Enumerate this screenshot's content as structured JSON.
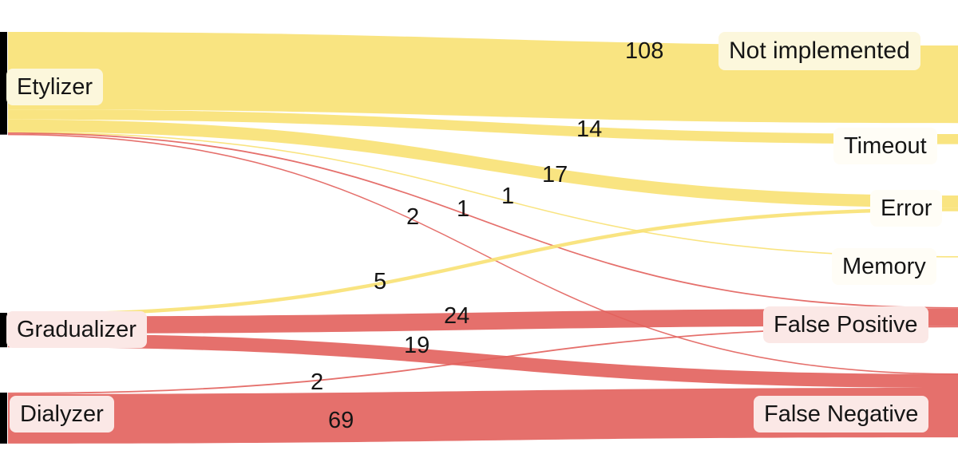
{
  "chart_data": {
    "type": "sankey",
    "title": "",
    "nodes": [
      {
        "label": "Etylizer",
        "side": "left",
        "palette": "yellow"
      },
      {
        "label": "Gradualizer",
        "side": "left",
        "palette": "pink"
      },
      {
        "label": "Dialyzer",
        "side": "left",
        "palette": "pink"
      },
      {
        "label": "Not implemented",
        "side": "right",
        "palette": "yellow"
      },
      {
        "label": "Timeout",
        "side": "right",
        "palette": "plain"
      },
      {
        "label": "Error",
        "side": "right",
        "palette": "plain"
      },
      {
        "label": "Memory",
        "side": "right",
        "palette": "plain"
      },
      {
        "label": "False Positive",
        "side": "right",
        "palette": "pink"
      },
      {
        "label": "False Negative",
        "side": "right",
        "palette": "pink"
      }
    ],
    "links": [
      {
        "source": "Etylizer",
        "target": "Not implemented",
        "value": 108
      },
      {
        "source": "Etylizer",
        "target": "Timeout",
        "value": 14
      },
      {
        "source": "Etylizer",
        "target": "Error",
        "value": 17
      },
      {
        "source": "Etylizer",
        "target": "Memory",
        "value": 1
      },
      {
        "source": "Etylizer",
        "target": "False Positive",
        "value": 2
      },
      {
        "source": "Etylizer",
        "target": "False Negative",
        "value": 1
      },
      {
        "source": "Gradualizer",
        "target": "Error",
        "value": 5
      },
      {
        "source": "Gradualizer",
        "target": "False Positive",
        "value": 24
      },
      {
        "source": "Gradualizer",
        "target": "False Negative",
        "value": 19
      },
      {
        "source": "Dialyzer",
        "target": "False Positive",
        "value": 2
      },
      {
        "source": "Dialyzer",
        "target": "False Negative",
        "value": 69
      }
    ],
    "colors": {
      "flow_yellow": "#f8e173",
      "flow_red": "#e2605c",
      "source_bar": "#000000",
      "label_bg_yellow": "#fcf7dc",
      "label_bg_pink": "#fbe8e6",
      "label_bg_plain": "#fffdf6",
      "text": "#151515"
    },
    "layout_hints": {
      "orientation": "left-to-right",
      "legend": false,
      "flows_exit_right_edge": true,
      "red_targets": [
        "False Positive",
        "False Negative"
      ]
    }
  }
}
